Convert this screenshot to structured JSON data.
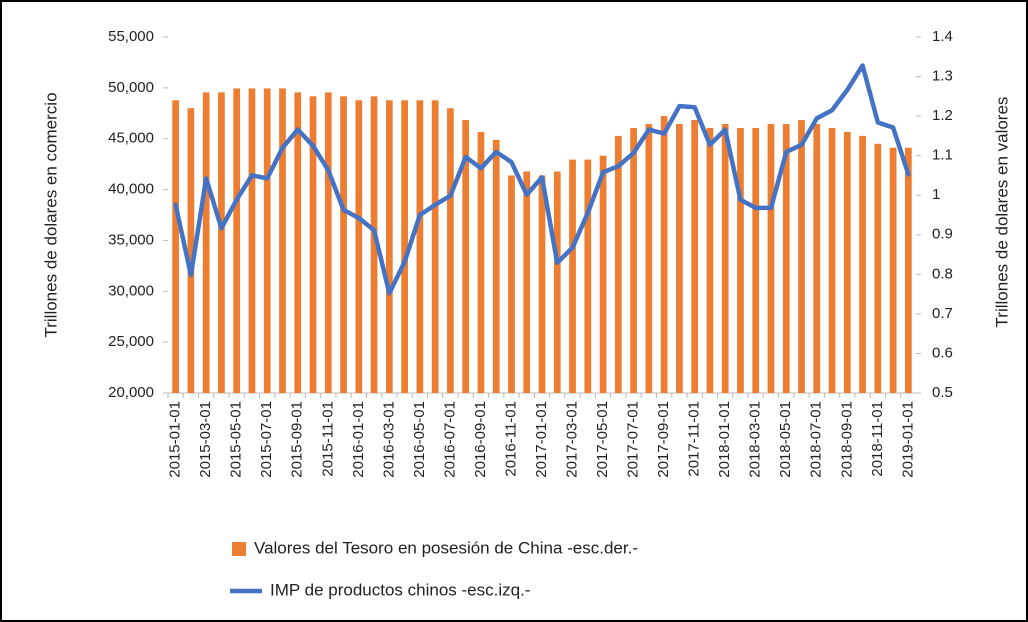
{
  "chart_data": {
    "type": "bar_line",
    "ylabel": "Trillones de dolares en comercio",
    "y2label": "Trillones de dolares en valores",
    "categories": [
      "2015-01-01",
      null,
      "2015-03-01",
      null,
      "2015-05-01",
      null,
      "2015-07-01",
      null,
      "2015-09-01",
      null,
      "2015-11-01",
      null,
      "2016-01-01",
      null,
      "2016-03-01",
      null,
      "2016-05-01",
      null,
      "2016-07-01",
      null,
      "2016-09-01",
      null,
      "2016-11-01",
      null,
      "2017-01-01",
      null,
      "2017-03-01",
      null,
      "2017-05-01",
      null,
      "2017-07-01",
      null,
      "2017-09-01",
      null,
      "2017-11-01",
      null,
      "2018-01-01",
      null,
      "2018-03-01",
      null,
      "2018-05-01",
      null,
      "2018-07-01",
      null,
      "2018-09-01",
      null,
      "2018-11-01",
      null,
      "2019-01-01"
    ],
    "series": [
      {
        "name": "Valores del Tesoro en posesión de China -esc.der.-",
        "type": "bar",
        "axis": "y2",
        "color": "#ed7d31",
        "values": [
          1.24,
          1.22,
          1.26,
          1.26,
          1.27,
          1.27,
          1.27,
          1.27,
          1.26,
          1.25,
          1.26,
          1.25,
          1.24,
          1.25,
          1.24,
          1.24,
          1.24,
          1.24,
          1.22,
          1.19,
          1.16,
          1.14,
          1.05,
          1.06,
          1.05,
          1.06,
          1.09,
          1.09,
          1.1,
          1.15,
          1.17,
          1.18,
          1.2,
          1.18,
          1.19,
          1.17,
          1.18,
          1.17,
          1.17,
          1.18,
          1.18,
          1.19,
          1.18,
          1.17,
          1.16,
          1.15,
          1.13,
          1.12,
          1.12
        ]
      },
      {
        "name": "IMP de productos chinos -esc.izq.-",
        "type": "line",
        "axis": "y",
        "color": "#4472c4",
        "values": [
          38500,
          31600,
          41100,
          36200,
          39000,
          41400,
          41100,
          44100,
          45900,
          44300,
          41900,
          38000,
          37200,
          36000,
          29800,
          32900,
          37500,
          38500,
          39400,
          43200,
          42100,
          43700,
          42700,
          39500,
          41200,
          32800,
          34300,
          37700,
          41700,
          42300,
          43600,
          45900,
          45500,
          48200,
          48100,
          44400,
          45900,
          39000,
          38200,
          38200,
          43700,
          44400,
          47000,
          47800,
          49800,
          52200,
          46600,
          46100,
          41500
        ]
      }
    ],
    "ylim": [
      20000,
      55000
    ],
    "yticks": [
      {
        "value": 20000,
        "label": "20,000"
      },
      {
        "value": 25000,
        "label": "25,000"
      },
      {
        "value": 30000,
        "label": "30,000"
      },
      {
        "value": 35000,
        "label": "35,000"
      },
      {
        "value": 40000,
        "label": "40,000"
      },
      {
        "value": 45000,
        "label": "45,000"
      },
      {
        "value": 50000,
        "label": "50,000"
      },
      {
        "value": 55000,
        "label": "55,000"
      }
    ],
    "y2lim": [
      0.5,
      1.4
    ],
    "y2ticks": [
      0.5,
      0.6,
      0.7,
      0.8,
      0.9,
      1,
      1.1,
      1.2,
      1.3,
      1.4
    ],
    "grid": false,
    "legend": "bottom"
  }
}
